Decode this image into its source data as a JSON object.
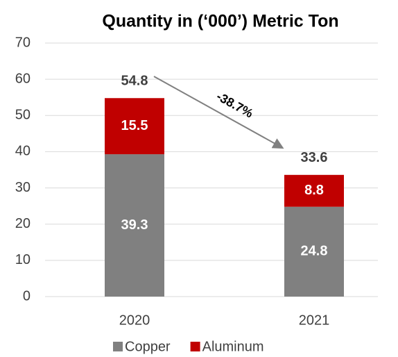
{
  "chart_data": {
    "type": "stacked_bar",
    "title": "Quantity in (‘000’) Metric Ton",
    "categories": [
      "2020",
      "2021"
    ],
    "series": [
      {
        "name": "Copper",
        "color": "#808080",
        "values": [
          39.3,
          24.8
        ]
      },
      {
        "name": "Aluminum",
        "color": "#c00000",
        "values": [
          15.5,
          8.8
        ]
      }
    ],
    "totals": [
      54.8,
      33.6
    ],
    "annotation": "-38.7%",
    "ylim": [
      0,
      70
    ],
    "yticks": [
      0,
      10,
      20,
      30,
      40,
      50,
      60,
      70
    ],
    "grid": true
  }
}
